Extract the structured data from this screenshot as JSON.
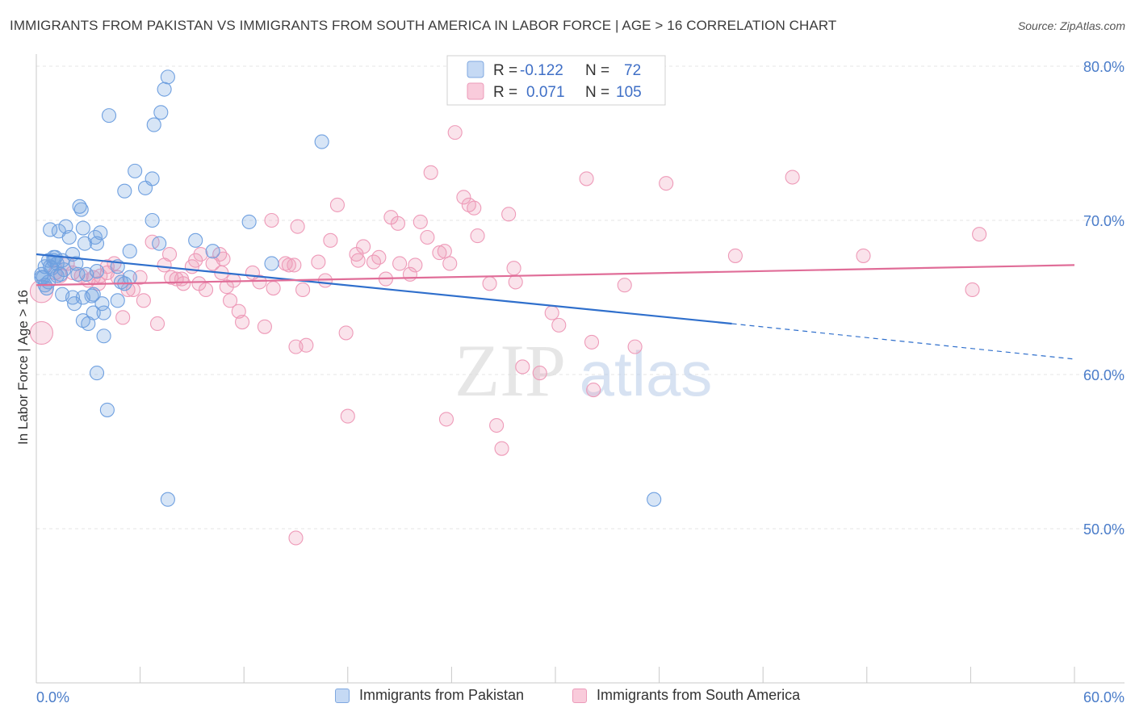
{
  "header": {
    "title": "IMMIGRANTS FROM PAKISTAN VS IMMIGRANTS FROM SOUTH AMERICA IN LABOR FORCE | AGE > 16 CORRELATION CHART",
    "source": "Source: ZipAtlas.com"
  },
  "watermark": {
    "zip": "ZIP",
    "atlas": "atlas"
  },
  "legend": {
    "r_label": "R =",
    "n_label": "N =",
    "rows": [
      {
        "r": "-0.122",
        "n": "72"
      },
      {
        "r": "0.071",
        "n": "105"
      }
    ]
  },
  "chart_data": {
    "type": "scatter",
    "title": "IMMIGRANTS FROM PAKISTAN VS IMMIGRANTS FROM SOUTH AMERICA IN LABOR FORCE | AGE > 16 CORRELATION CHART",
    "xlabel": "",
    "ylabel": "In Labor Force | Age > 16",
    "xlim": [
      0,
      60
    ],
    "ylim": [
      40,
      82
    ],
    "x_tick_labels": [
      "0.0%",
      "60.0%"
    ],
    "y_ticks": [
      50,
      60,
      70,
      80
    ],
    "y_tick_labels": [
      "50.0%",
      "60.0%",
      "70.0%",
      "80.0%"
    ],
    "grid": true,
    "legend_position": "top-center",
    "colors": {
      "pakistan": "#6fa0e0",
      "south_america": "#ee9ab8",
      "pakistan_line": "#2f6fcc",
      "south_america_line": "#e06d98",
      "tick_label": "#4a7cc9"
    },
    "series": [
      {
        "name": "Immigrants from Pakistan",
        "r": -0.122,
        "n": 72,
        "trend": {
          "x": [
            0,
            40.2
          ],
          "y": [
            67.8,
            63.3
          ],
          "dashed_to": [
            60,
            61.0
          ]
        },
        "points": [
          [
            0.3,
            66.5
          ],
          [
            0.4,
            66.3
          ],
          [
            0.5,
            65.8
          ],
          [
            0.6,
            65.6
          ],
          [
            0.5,
            67.0
          ],
          [
            0.7,
            67.4
          ],
          [
            0.8,
            67.0
          ],
          [
            0.9,
            66.9
          ],
          [
            1.0,
            67.4
          ],
          [
            1.1,
            67.6
          ],
          [
            1.2,
            67.2
          ],
          [
            1.2,
            66.4
          ],
          [
            1.4,
            66.5
          ],
          [
            1.5,
            67.4
          ],
          [
            0.8,
            69.4
          ],
          [
            1.3,
            69.3
          ],
          [
            1.7,
            69.6
          ],
          [
            1.9,
            68.9
          ],
          [
            2.1,
            67.8
          ],
          [
            2.3,
            67.2
          ],
          [
            2.4,
            66.5
          ],
          [
            2.5,
            70.9
          ],
          [
            2.6,
            70.7
          ],
          [
            2.7,
            69.5
          ],
          [
            2.8,
            68.5
          ],
          [
            2.9,
            66.5
          ],
          [
            3.4,
            68.9
          ],
          [
            3.5,
            68.5
          ],
          [
            3.7,
            69.2
          ],
          [
            3.5,
            66.7
          ],
          [
            4.7,
            67.0
          ],
          [
            4.9,
            66.0
          ],
          [
            5.1,
            65.9
          ],
          [
            1.5,
            65.2
          ],
          [
            2.1,
            65.0
          ],
          [
            2.2,
            64.6
          ],
          [
            2.7,
            65.0
          ],
          [
            3.2,
            65.1
          ],
          [
            2.7,
            63.5
          ],
          [
            3.0,
            63.3
          ],
          [
            3.3,
            64.0
          ],
          [
            3.8,
            64.6
          ],
          [
            3.9,
            64.0
          ],
          [
            4.7,
            64.8
          ],
          [
            3.9,
            62.5
          ],
          [
            3.5,
            60.1
          ],
          [
            4.1,
            57.7
          ],
          [
            4.2,
            76.8
          ],
          [
            5.1,
            71.9
          ],
          [
            5.7,
            73.2
          ],
          [
            6.3,
            72.1
          ],
          [
            6.7,
            72.7
          ],
          [
            6.7,
            70.0
          ],
          [
            7.1,
            68.5
          ],
          [
            6.8,
            76.2
          ],
          [
            7.2,
            77.0
          ],
          [
            7.4,
            78.5
          ],
          [
            7.6,
            79.3
          ],
          [
            5.4,
            66.3
          ],
          [
            5.4,
            68.0
          ],
          [
            9.2,
            68.7
          ],
          [
            10.2,
            68.0
          ],
          [
            12.3,
            69.9
          ],
          [
            13.6,
            67.2
          ],
          [
            16.5,
            75.1
          ],
          [
            7.6,
            51.9
          ],
          [
            35.7,
            51.9
          ],
          [
            0.3,
            66.3
          ],
          [
            1.0,
            67.6
          ],
          [
            1.6,
            66.8
          ],
          [
            3.3,
            65.2
          ],
          [
            0.7,
            66.0
          ]
        ]
      },
      {
        "name": "Immigrants from South America",
        "r": 0.071,
        "n": 105,
        "trend": {
          "x": [
            0,
            60
          ],
          "y": [
            65.8,
            67.1
          ]
        },
        "points": [
          [
            0.3,
            65.4
          ],
          [
            0.3,
            62.7
          ],
          [
            1.1,
            66.6
          ],
          [
            1.4,
            66.4
          ],
          [
            1.8,
            67.2
          ],
          [
            2.1,
            66.6
          ],
          [
            2.6,
            66.4
          ],
          [
            3.3,
            66.3
          ],
          [
            3.6,
            65.9
          ],
          [
            3.7,
            66.4
          ],
          [
            4.1,
            67.0
          ],
          [
            4.5,
            67.2
          ],
          [
            4.7,
            66.3
          ],
          [
            5.0,
            63.7
          ],
          [
            5.3,
            65.5
          ],
          [
            5.6,
            65.5
          ],
          [
            6.0,
            66.3
          ],
          [
            6.2,
            64.8
          ],
          [
            6.7,
            68.6
          ],
          [
            7.0,
            63.3
          ],
          [
            7.4,
            67.1
          ],
          [
            7.7,
            67.8
          ],
          [
            7.8,
            66.3
          ],
          [
            8.1,
            66.2
          ],
          [
            8.4,
            66.2
          ],
          [
            8.5,
            65.9
          ],
          [
            9.0,
            67.0
          ],
          [
            9.2,
            67.4
          ],
          [
            9.4,
            65.9
          ],
          [
            9.8,
            65.5
          ],
          [
            10.2,
            67.2
          ],
          [
            10.6,
            67.8
          ],
          [
            10.7,
            66.6
          ],
          [
            11.0,
            65.7
          ],
          [
            11.2,
            64.8
          ],
          [
            11.4,
            66.1
          ],
          [
            11.7,
            64.1
          ],
          [
            11.9,
            63.4
          ],
          [
            12.5,
            66.6
          ],
          [
            12.9,
            66.0
          ],
          [
            13.2,
            63.1
          ],
          [
            13.6,
            70.0
          ],
          [
            13.7,
            65.6
          ],
          [
            14.4,
            67.2
          ],
          [
            14.6,
            67.1
          ],
          [
            15.0,
            61.8
          ],
          [
            15.1,
            69.6
          ],
          [
            15.4,
            65.5
          ],
          [
            15.6,
            61.9
          ],
          [
            16.3,
            67.3
          ],
          [
            16.7,
            66.1
          ],
          [
            17.0,
            68.7
          ],
          [
            17.4,
            71.0
          ],
          [
            17.9,
            62.7
          ],
          [
            18.0,
            57.3
          ],
          [
            18.5,
            67.8
          ],
          [
            18.9,
            68.3
          ],
          [
            19.5,
            67.3
          ],
          [
            19.8,
            67.6
          ],
          [
            20.2,
            66.2
          ],
          [
            20.5,
            70.2
          ],
          [
            20.9,
            69.8
          ],
          [
            21.0,
            67.2
          ],
          [
            21.6,
            66.5
          ],
          [
            21.9,
            67.1
          ],
          [
            22.2,
            69.9
          ],
          [
            22.6,
            68.9
          ],
          [
            22.8,
            73.1
          ],
          [
            23.3,
            67.9
          ],
          [
            23.6,
            68.0
          ],
          [
            23.9,
            67.2
          ],
          [
            23.7,
            57.1
          ],
          [
            24.2,
            75.7
          ],
          [
            24.7,
            71.5
          ],
          [
            25.0,
            71.0
          ],
          [
            25.3,
            70.8
          ],
          [
            25.5,
            69.0
          ],
          [
            26.2,
            65.9
          ],
          [
            26.6,
            56.7
          ],
          [
            26.9,
            55.2
          ],
          [
            27.3,
            70.4
          ],
          [
            27.6,
            66.9
          ],
          [
            27.7,
            66.0
          ],
          [
            28.1,
            60.5
          ],
          [
            29.1,
            60.1
          ],
          [
            29.8,
            64.0
          ],
          [
            30.2,
            63.2
          ],
          [
            31.8,
            72.7
          ],
          [
            32.1,
            62.1
          ],
          [
            32.2,
            59.0
          ],
          [
            34.0,
            65.8
          ],
          [
            34.6,
            61.8
          ],
          [
            36.4,
            72.4
          ],
          [
            40.4,
            67.7
          ],
          [
            43.7,
            72.8
          ],
          [
            47.8,
            67.7
          ],
          [
            54.1,
            65.5
          ],
          [
            54.5,
            69.1
          ],
          [
            10.8,
            67.5
          ],
          [
            9.5,
            67.8
          ],
          [
            4.1,
            66.6
          ],
          [
            3.0,
            66.1
          ],
          [
            14.9,
            67.1
          ],
          [
            18.6,
            67.4
          ],
          [
            15.0,
            49.4
          ]
        ]
      }
    ]
  }
}
